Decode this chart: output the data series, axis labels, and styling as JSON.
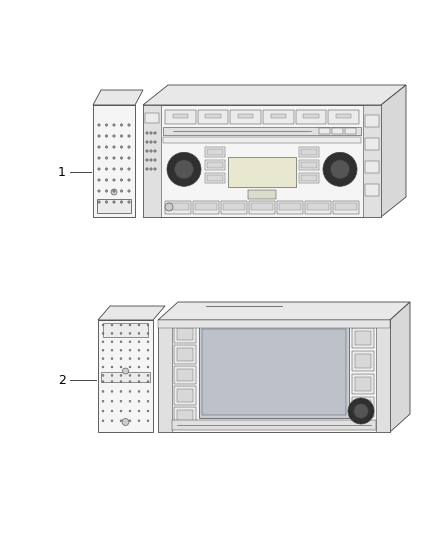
{
  "background_color": "#ffffff",
  "line_color": "#444444",
  "line_width": 0.6,
  "fill_front": "#f5f5f5",
  "fill_top": "#e8e8e8",
  "fill_right": "#d8d8d8",
  "fill_side_panel": "#e0e0e0",
  "fill_button": "#ebebeb",
  "fill_screen": "#d0d4d8",
  "fill_knob_outer": "#303030",
  "fill_knob_inner": "#555555",
  "fill_grille": "#c8c8c8",
  "dot_color": "#909090",
  "label1": "1",
  "label2": "2",
  "label_fontsize": 9
}
